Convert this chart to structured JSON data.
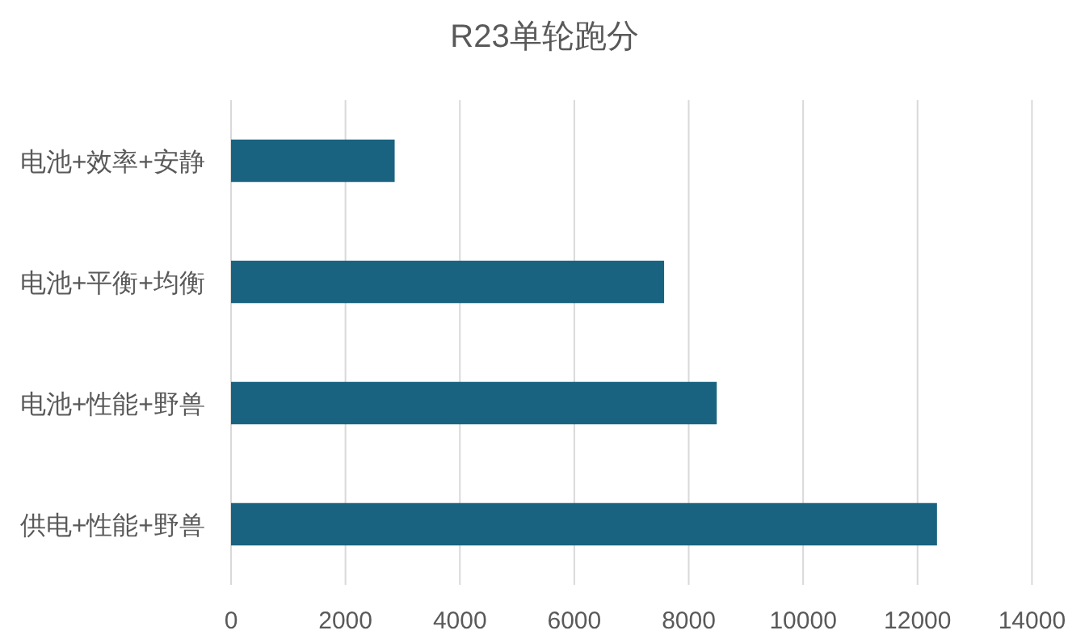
{
  "chart_data": {
    "type": "bar",
    "orientation": "horizontal",
    "title": "R23单轮跑分",
    "categories": [
      "电池+效率+安静",
      "电池+平衡+均衡",
      "电池+性能+野兽",
      "供电+性能+野兽"
    ],
    "values": [
      2860,
      7570,
      8490,
      12340
    ],
    "color": "#1a6380",
    "xlim": [
      0,
      14000
    ],
    "xticks": [
      0,
      2000,
      4000,
      6000,
      8000,
      10000,
      12000,
      14000
    ],
    "grid": "x"
  }
}
